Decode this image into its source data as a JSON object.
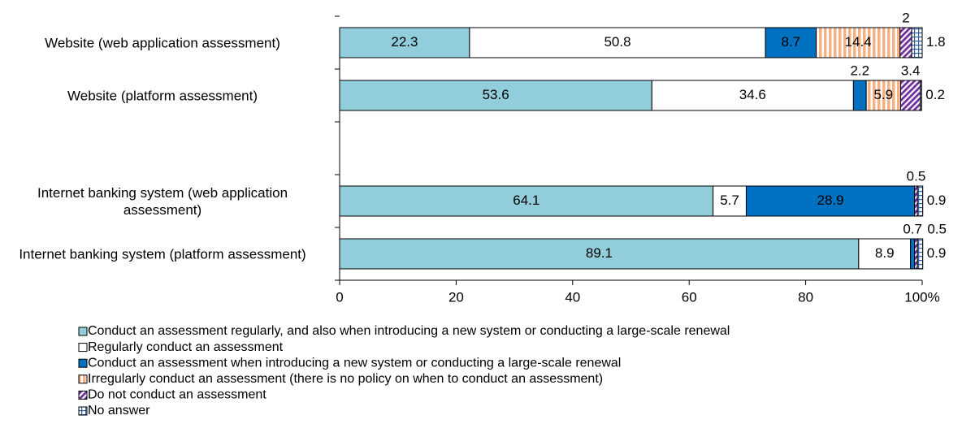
{
  "chart_data": {
    "type": "stacked-barh",
    "categories": [
      "Website (web application assessment)",
      "Website (platform assessment)",
      null,
      "Internet banking system (web application assessment)",
      "Internet banking system (platform assessment)"
    ],
    "series": [
      {
        "name": "Conduct an assessment regularly, and also when introducing a new system or conducting a large-scale renewal",
        "color": "#92cddc",
        "values": [
          22.3,
          53.6,
          null,
          64.1,
          89.1
        ]
      },
      {
        "name": "Regularly conduct an assessment",
        "color": "#ffffff",
        "values": [
          50.8,
          34.6,
          null,
          5.7,
          8.9
        ]
      },
      {
        "name": "Conduct an assessment when introducing a new system or conducting a large-scale renewal",
        "color": "#0070c0",
        "values": [
          8.7,
          2.2,
          null,
          28.9,
          0.7
        ]
      },
      {
        "name": "Irregularly conduct an assessment (there is no policy on when to conduct an assessment)",
        "color": "#f4b183",
        "values": [
          14.4,
          5.9,
          null,
          null,
          null
        ]
      },
      {
        "name": "Do not conduct an assessment",
        "color": "#7030a0",
        "values": [
          2.0,
          3.4,
          null,
          0.5,
          0.5
        ]
      },
      {
        "name": "No answer",
        "color": "#2e5f9e",
        "values": [
          1.8,
          0.2,
          null,
          0.9,
          0.9
        ]
      }
    ],
    "xlim": [
      0,
      100
    ],
    "xticks": [
      0,
      20,
      40,
      60,
      80,
      {
        "value": 100,
        "label": "100%"
      }
    ]
  }
}
